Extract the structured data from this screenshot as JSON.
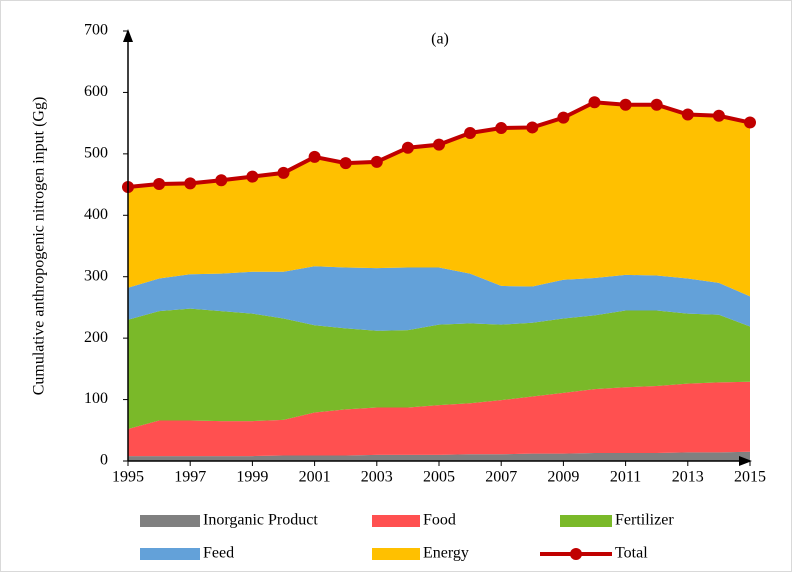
{
  "chart_data": {
    "type": "area",
    "annotation": "(a)",
    "y_label": "Cumulative anthropogenic nitrogen input (Gg)",
    "x": [
      1995,
      1996,
      1997,
      1998,
      1999,
      2000,
      2001,
      2002,
      2003,
      2004,
      2005,
      2006,
      2007,
      2008,
      2009,
      2010,
      2011,
      2012,
      2013,
      2014,
      2015
    ],
    "xlim": [
      1995,
      2015
    ],
    "xticks": [
      1995,
      1997,
      1999,
      2001,
      2003,
      2005,
      2007,
      2009,
      2011,
      2013,
      2015
    ],
    "ylim": [
      0,
      700
    ],
    "yticks": [
      0,
      100,
      200,
      300,
      400,
      500,
      600,
      700
    ],
    "series": [
      {
        "name": "Inorganic Product",
        "color": "#808080",
        "kind": "area",
        "values": [
          8,
          8,
          8,
          8,
          8,
          9,
          9,
          9,
          10,
          10,
          10,
          11,
          11,
          12,
          12,
          13,
          13,
          13,
          14,
          14,
          15
        ]
      },
      {
        "name": "Food",
        "color": "#ff5050",
        "kind": "area",
        "values": [
          44,
          58,
          58,
          57,
          57,
          58,
          70,
          75,
          77,
          77,
          81,
          83,
          88,
          93,
          99,
          104,
          107,
          109,
          112,
          114,
          114
        ]
      },
      {
        "name": "Fertilizer",
        "color": "#7ab929",
        "kind": "area",
        "values": [
          178,
          178,
          182,
          179,
          175,
          165,
          142,
          132,
          125,
          126,
          131,
          130,
          123,
          120,
          121,
          120,
          125,
          123,
          114,
          110,
          90
        ]
      },
      {
        "name": "Feed",
        "color": "#63a1d9",
        "kind": "area",
        "values": [
          52,
          53,
          56,
          61,
          68,
          76,
          96,
          99,
          102,
          102,
          93,
          81,
          63,
          59,
          63,
          61,
          58,
          57,
          57,
          52,
          49
        ]
      },
      {
        "name": "Energy",
        "color": "#ffc000",
        "kind": "area",
        "values": [
          164,
          154,
          148,
          152,
          155,
          161,
          178,
          170,
          173,
          195,
          200,
          229,
          257,
          259,
          264,
          286,
          277,
          278,
          267,
          272,
          283
        ]
      },
      {
        "name": "Total",
        "color": "#c00000",
        "kind": "line",
        "values": [
          446,
          451,
          452,
          457,
          463,
          469,
          495,
          485,
          487,
          510,
          515,
          534,
          542,
          543,
          559,
          584,
          580,
          580,
          564,
          562,
          551
        ]
      }
    ]
  }
}
